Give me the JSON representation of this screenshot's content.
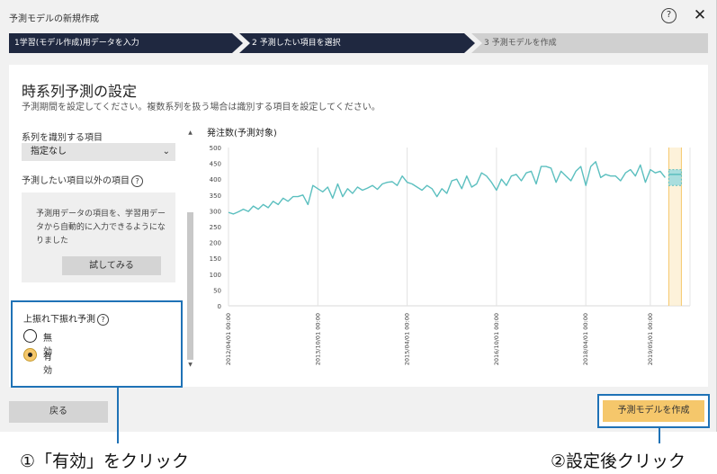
{
  "window": {
    "title": "予測モデルの新規作成",
    "help_icon": "question-circle-icon",
    "close_icon": "close-icon"
  },
  "steps": [
    {
      "label": "1学習(モデル作成)用データを入力",
      "state": "done"
    },
    {
      "label": "2 予測したい項目を選択",
      "state": "active"
    },
    {
      "label": "3 予測モデルを作成",
      "state": "pending"
    }
  ],
  "main": {
    "heading": "時系列予測の設定",
    "subheading": "予測期間を設定してください。複数系列を扱う場合は識別する項目を設定してください。"
  },
  "series_id": {
    "label": "系列を識別する項目",
    "selected": "指定なし"
  },
  "other_items": {
    "label": "予測したい項目以外の項目",
    "info_text": "予測用データの項目を、学習用データから自動的に入力できるようになりました",
    "try_button": "試してみる"
  },
  "updown": {
    "label": "上振れ下振れ予測",
    "options": [
      {
        "label": "無効",
        "checked": false
      },
      {
        "label": "有効",
        "checked": true
      }
    ]
  },
  "chart_data": {
    "type": "line",
    "title": "発注数(予測対象)",
    "xlabel": "",
    "ylabel": "",
    "ylim": [
      0,
      500
    ],
    "y_ticks": [
      "500",
      "450",
      "400",
      "350",
      "300",
      "250",
      "200",
      "150",
      "100",
      "50",
      "0"
    ],
    "x_ticks": [
      "2012/04/01 00:00",
      "2013/10/01 00:00",
      "2015/04/01 00:00",
      "2016/10/01 00:00",
      "2018/04/01 00:00",
      "2019/05/01 00:00"
    ],
    "x_tick_positions": [
      0,
      18,
      36,
      54,
      72,
      85
    ],
    "grid": "vertical",
    "series": [
      {
        "color": "#5bbfbf",
        "values": [
          295,
          290,
          297,
          305,
          298,
          315,
          305,
          320,
          310,
          330,
          320,
          340,
          330,
          345,
          345,
          350,
          320,
          380,
          370,
          360,
          375,
          340,
          385,
          345,
          370,
          355,
          375,
          365,
          372,
          380,
          368,
          385,
          390,
          392,
          380,
          410,
          390,
          385,
          375,
          365,
          380,
          370,
          345,
          370,
          355,
          395,
          400,
          370,
          410,
          375,
          385,
          420,
          410,
          390,
          365,
          400,
          380,
          410,
          415,
          395,
          420,
          425,
          385,
          440,
          440,
          435,
          390,
          425,
          410,
          395,
          425,
          440,
          380,
          440,
          455,
          405,
          415,
          410,
          410,
          395,
          420,
          430,
          410,
          445,
          390,
          430,
          420,
          425,
          405
        ]
      }
    ],
    "forecast_band": {
      "center": 415,
      "lower": 380,
      "upper": 430,
      "color": "#f5c76b"
    }
  },
  "footer": {
    "back_button": "戻る",
    "create_button": "予測モデルを作成"
  },
  "annotations": {
    "left": "①「有効」をクリック",
    "right": "②設定後クリック",
    "color": "#1f72b6"
  }
}
